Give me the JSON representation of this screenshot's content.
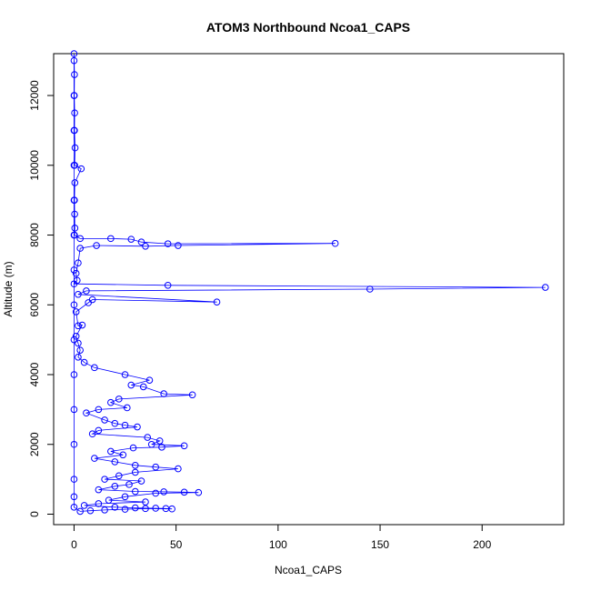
{
  "chart_data": {
    "type": "scatter",
    "title": "ATOM3 Northbound Ncoa1_CAPS",
    "xlabel": "Ncoa1_CAPS",
    "ylabel": "Altitude (m)",
    "xlim": [
      -10,
      240
    ],
    "ylim": [
      -300,
      13200
    ],
    "xticks": [
      0,
      50,
      100,
      150,
      200
    ],
    "yticks": [
      0,
      2000,
      4000,
      6000,
      8000,
      10000,
      12000
    ],
    "series_color": "#0000ff",
    "marker": "open-circle",
    "connected": true,
    "grid": false,
    "legend": "none",
    "points": [
      [
        0,
        13200
      ],
      [
        0.2,
        12600
      ],
      [
        0.1,
        12000
      ],
      [
        0.3,
        11500
      ],
      [
        0.2,
        11000
      ],
      [
        0.5,
        10500
      ],
      [
        0.3,
        10000
      ],
      [
        3.5,
        9900
      ],
      [
        0.4,
        9500
      ],
      [
        0.2,
        9000
      ],
      [
        0.3,
        8600
      ],
      [
        0.4,
        8200
      ],
      [
        0.2,
        8000
      ],
      [
        3,
        7900
      ],
      [
        18,
        7900
      ],
      [
        28,
        7880
      ],
      [
        33,
        7800
      ],
      [
        46,
        7750
      ],
      [
        128,
        7760
      ],
      [
        51,
        7700
      ],
      [
        35,
        7680
      ],
      [
        11,
        7700
      ],
      [
        3,
        7620
      ],
      [
        2,
        7200
      ],
      [
        1,
        6900
      ],
      [
        1.5,
        6700
      ],
      [
        0,
        6600
      ],
      [
        46,
        6560
      ],
      [
        231,
        6500
      ],
      [
        145,
        6450
      ],
      [
        6,
        6400
      ],
      [
        2,
        6300
      ],
      [
        70,
        6080
      ],
      [
        9,
        6150
      ],
      [
        7,
        6060
      ],
      [
        1,
        5800
      ],
      [
        2,
        5400
      ],
      [
        4,
        5420
      ],
      [
        1,
        5100
      ],
      [
        2,
        4900
      ],
      [
        3,
        4700
      ],
      [
        2,
        4500
      ],
      [
        5,
        4350
      ],
      [
        10,
        4200
      ],
      [
        25,
        4000
      ],
      [
        37,
        3840
      ],
      [
        28,
        3700
      ],
      [
        34,
        3650
      ],
      [
        44,
        3450
      ],
      [
        58,
        3420
      ],
      [
        22,
        3300
      ],
      [
        18,
        3200
      ],
      [
        26,
        3050
      ],
      [
        12,
        3000
      ],
      [
        6,
        2900
      ],
      [
        15,
        2700
      ],
      [
        20,
        2600
      ],
      [
        25,
        2550
      ],
      [
        31,
        2500
      ],
      [
        12,
        2400
      ],
      [
        9,
        2300
      ],
      [
        36,
        2200
      ],
      [
        42,
        2100
      ],
      [
        38,
        2000
      ],
      [
        54,
        1960
      ],
      [
        43,
        1920
      ],
      [
        29,
        1900
      ],
      [
        18,
        1800
      ],
      [
        24,
        1700
      ],
      [
        10,
        1600
      ],
      [
        20,
        1500
      ],
      [
        30,
        1400
      ],
      [
        40,
        1350
      ],
      [
        51,
        1300
      ],
      [
        30,
        1200
      ],
      [
        22,
        1100
      ],
      [
        15,
        1000
      ],
      [
        33,
        950
      ],
      [
        27,
        850
      ],
      [
        20,
        800
      ],
      [
        12,
        700
      ],
      [
        30,
        650
      ],
      [
        44,
        640
      ],
      [
        54,
        630
      ],
      [
        61,
        620
      ],
      [
        40,
        600
      ],
      [
        25,
        500
      ],
      [
        17,
        400
      ],
      [
        35,
        350
      ],
      [
        12,
        300
      ],
      [
        5,
        250
      ],
      [
        20,
        200
      ],
      [
        30,
        180
      ],
      [
        40,
        170
      ],
      [
        45,
        160
      ],
      [
        48,
        150
      ],
      [
        35,
        160
      ],
      [
        25,
        140
      ],
      [
        15,
        120
      ],
      [
        8,
        100
      ],
      [
        3,
        80
      ],
      [
        0,
        200
      ],
      [
        0,
        500
      ],
      [
        0,
        1000
      ],
      [
        0,
        2000
      ],
      [
        0,
        3000
      ],
      [
        0,
        4000
      ],
      [
        0,
        5000
      ],
      [
        0,
        6000
      ],
      [
        0,
        7000
      ],
      [
        0,
        8000
      ],
      [
        0,
        9000
      ],
      [
        0,
        10000
      ],
      [
        0,
        11000
      ],
      [
        0,
        12000
      ],
      [
        0,
        13000
      ]
    ]
  }
}
